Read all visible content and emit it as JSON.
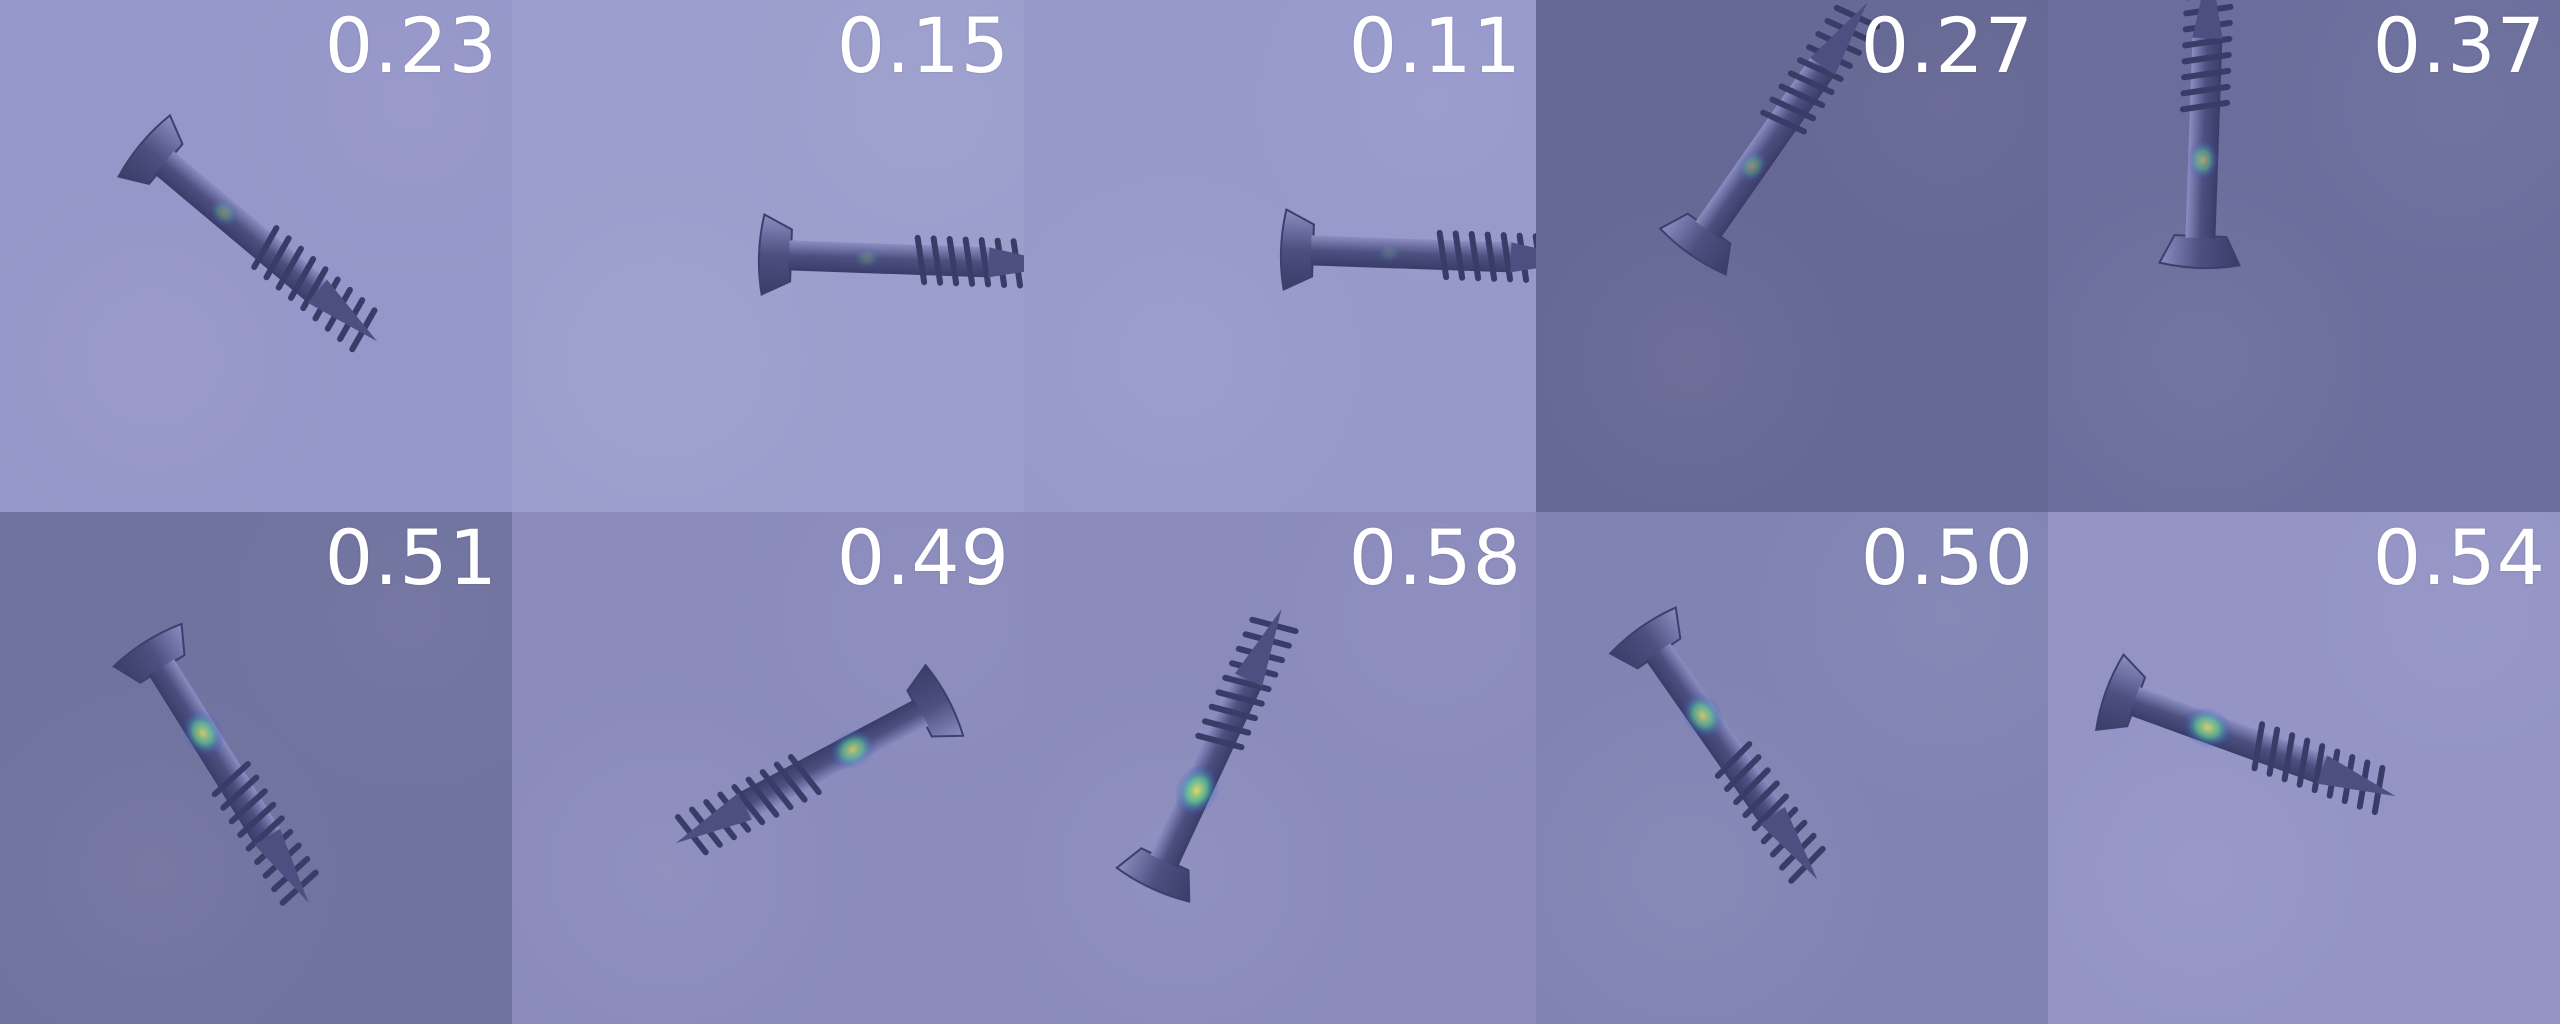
{
  "tiles": [
    {
      "score": "0.23",
      "bg": "#9596c9",
      "heat": 0.23
    },
    {
      "score": "0.15",
      "bg": "#9b9dcc",
      "heat": 0.15
    },
    {
      "score": "0.11",
      "bg": "#9799cb",
      "heat": 0.11
    },
    {
      "score": "0.27",
      "bg": "#656794",
      "heat": 0.27
    },
    {
      "score": "0.37",
      "bg": "#6b6d9c",
      "heat": 0.37
    },
    {
      "score": "0.51",
      "bg": "#70729f",
      "heat": 0.51
    },
    {
      "score": "0.49",
      "bg": "#8a8bbc",
      "heat": 0.49
    },
    {
      "score": "0.58",
      "bg": "#8a8bbc",
      "heat": 0.58
    },
    {
      "score": "0.50",
      "bg": "#8183b3",
      "heat": 0.5
    },
    {
      "score": "0.54",
      "bg": "#9394c5",
      "heat": 0.54
    }
  ],
  "colors": {
    "score_text": "#ffffff",
    "screw_body": "#4d4f80",
    "screw_highlight": "#8c8ec3",
    "heat_low": "#2b3bd6",
    "heat_high": "#f3ea67"
  },
  "icons": {
    "object": "screw-icon"
  }
}
